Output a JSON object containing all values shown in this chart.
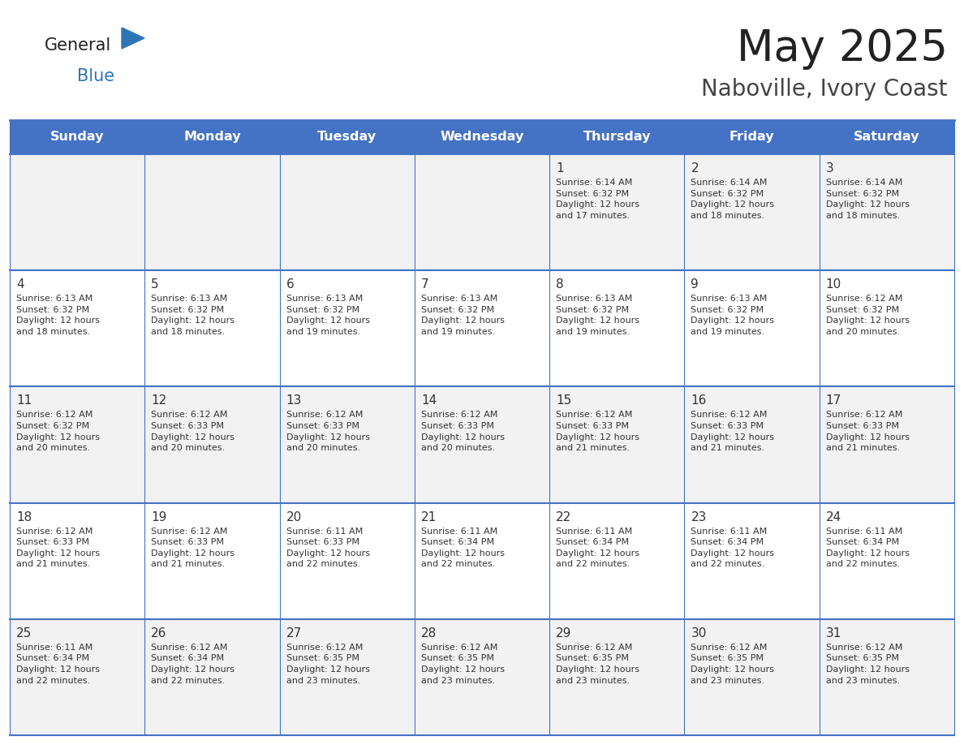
{
  "title": "May 2025",
  "subtitle": "Naboville, Ivory Coast",
  "days_of_week": [
    "Sunday",
    "Monday",
    "Tuesday",
    "Wednesday",
    "Thursday",
    "Friday",
    "Saturday"
  ],
  "header_bg": "#4472C4",
  "header_text": "#FFFFFF",
  "row_bg_light": "#F2F2F2",
  "row_bg_white": "#FFFFFF",
  "border_color": "#4472C4",
  "day_number_color": "#333333",
  "info_color": "#333333",
  "title_color": "#222222",
  "subtitle_color": "#444444",
  "logo_general_color": "#222222",
  "logo_blue_color": "#2E75B6",
  "calendar_data": [
    [
      "",
      "",
      "",
      "",
      "1\nSunrise: 6:14 AM\nSunset: 6:32 PM\nDaylight: 12 hours\nand 17 minutes.",
      "2\nSunrise: 6:14 AM\nSunset: 6:32 PM\nDaylight: 12 hours\nand 18 minutes.",
      "3\nSunrise: 6:14 AM\nSunset: 6:32 PM\nDaylight: 12 hours\nand 18 minutes."
    ],
    [
      "4\nSunrise: 6:13 AM\nSunset: 6:32 PM\nDaylight: 12 hours\nand 18 minutes.",
      "5\nSunrise: 6:13 AM\nSunset: 6:32 PM\nDaylight: 12 hours\nand 18 minutes.",
      "6\nSunrise: 6:13 AM\nSunset: 6:32 PM\nDaylight: 12 hours\nand 19 minutes.",
      "7\nSunrise: 6:13 AM\nSunset: 6:32 PM\nDaylight: 12 hours\nand 19 minutes.",
      "8\nSunrise: 6:13 AM\nSunset: 6:32 PM\nDaylight: 12 hours\nand 19 minutes.",
      "9\nSunrise: 6:13 AM\nSunset: 6:32 PM\nDaylight: 12 hours\nand 19 minutes.",
      "10\nSunrise: 6:12 AM\nSunset: 6:32 PM\nDaylight: 12 hours\nand 20 minutes."
    ],
    [
      "11\nSunrise: 6:12 AM\nSunset: 6:32 PM\nDaylight: 12 hours\nand 20 minutes.",
      "12\nSunrise: 6:12 AM\nSunset: 6:33 PM\nDaylight: 12 hours\nand 20 minutes.",
      "13\nSunrise: 6:12 AM\nSunset: 6:33 PM\nDaylight: 12 hours\nand 20 minutes.",
      "14\nSunrise: 6:12 AM\nSunset: 6:33 PM\nDaylight: 12 hours\nand 20 minutes.",
      "15\nSunrise: 6:12 AM\nSunset: 6:33 PM\nDaylight: 12 hours\nand 21 minutes.",
      "16\nSunrise: 6:12 AM\nSunset: 6:33 PM\nDaylight: 12 hours\nand 21 minutes.",
      "17\nSunrise: 6:12 AM\nSunset: 6:33 PM\nDaylight: 12 hours\nand 21 minutes."
    ],
    [
      "18\nSunrise: 6:12 AM\nSunset: 6:33 PM\nDaylight: 12 hours\nand 21 minutes.",
      "19\nSunrise: 6:12 AM\nSunset: 6:33 PM\nDaylight: 12 hours\nand 21 minutes.",
      "20\nSunrise: 6:11 AM\nSunset: 6:33 PM\nDaylight: 12 hours\nand 22 minutes.",
      "21\nSunrise: 6:11 AM\nSunset: 6:34 PM\nDaylight: 12 hours\nand 22 minutes.",
      "22\nSunrise: 6:11 AM\nSunset: 6:34 PM\nDaylight: 12 hours\nand 22 minutes.",
      "23\nSunrise: 6:11 AM\nSunset: 6:34 PM\nDaylight: 12 hours\nand 22 minutes.",
      "24\nSunrise: 6:11 AM\nSunset: 6:34 PM\nDaylight: 12 hours\nand 22 minutes."
    ],
    [
      "25\nSunrise: 6:11 AM\nSunset: 6:34 PM\nDaylight: 12 hours\nand 22 minutes.",
      "26\nSunrise: 6:12 AM\nSunset: 6:34 PM\nDaylight: 12 hours\nand 22 minutes.",
      "27\nSunrise: 6:12 AM\nSunset: 6:35 PM\nDaylight: 12 hours\nand 23 minutes.",
      "28\nSunrise: 6:12 AM\nSunset: 6:35 PM\nDaylight: 12 hours\nand 23 minutes.",
      "29\nSunrise: 6:12 AM\nSunset: 6:35 PM\nDaylight: 12 hours\nand 23 minutes.",
      "30\nSunrise: 6:12 AM\nSunset: 6:35 PM\nDaylight: 12 hours\nand 23 minutes.",
      "31\nSunrise: 6:12 AM\nSunset: 6:35 PM\nDaylight: 12 hours\nand 23 minutes."
    ]
  ]
}
